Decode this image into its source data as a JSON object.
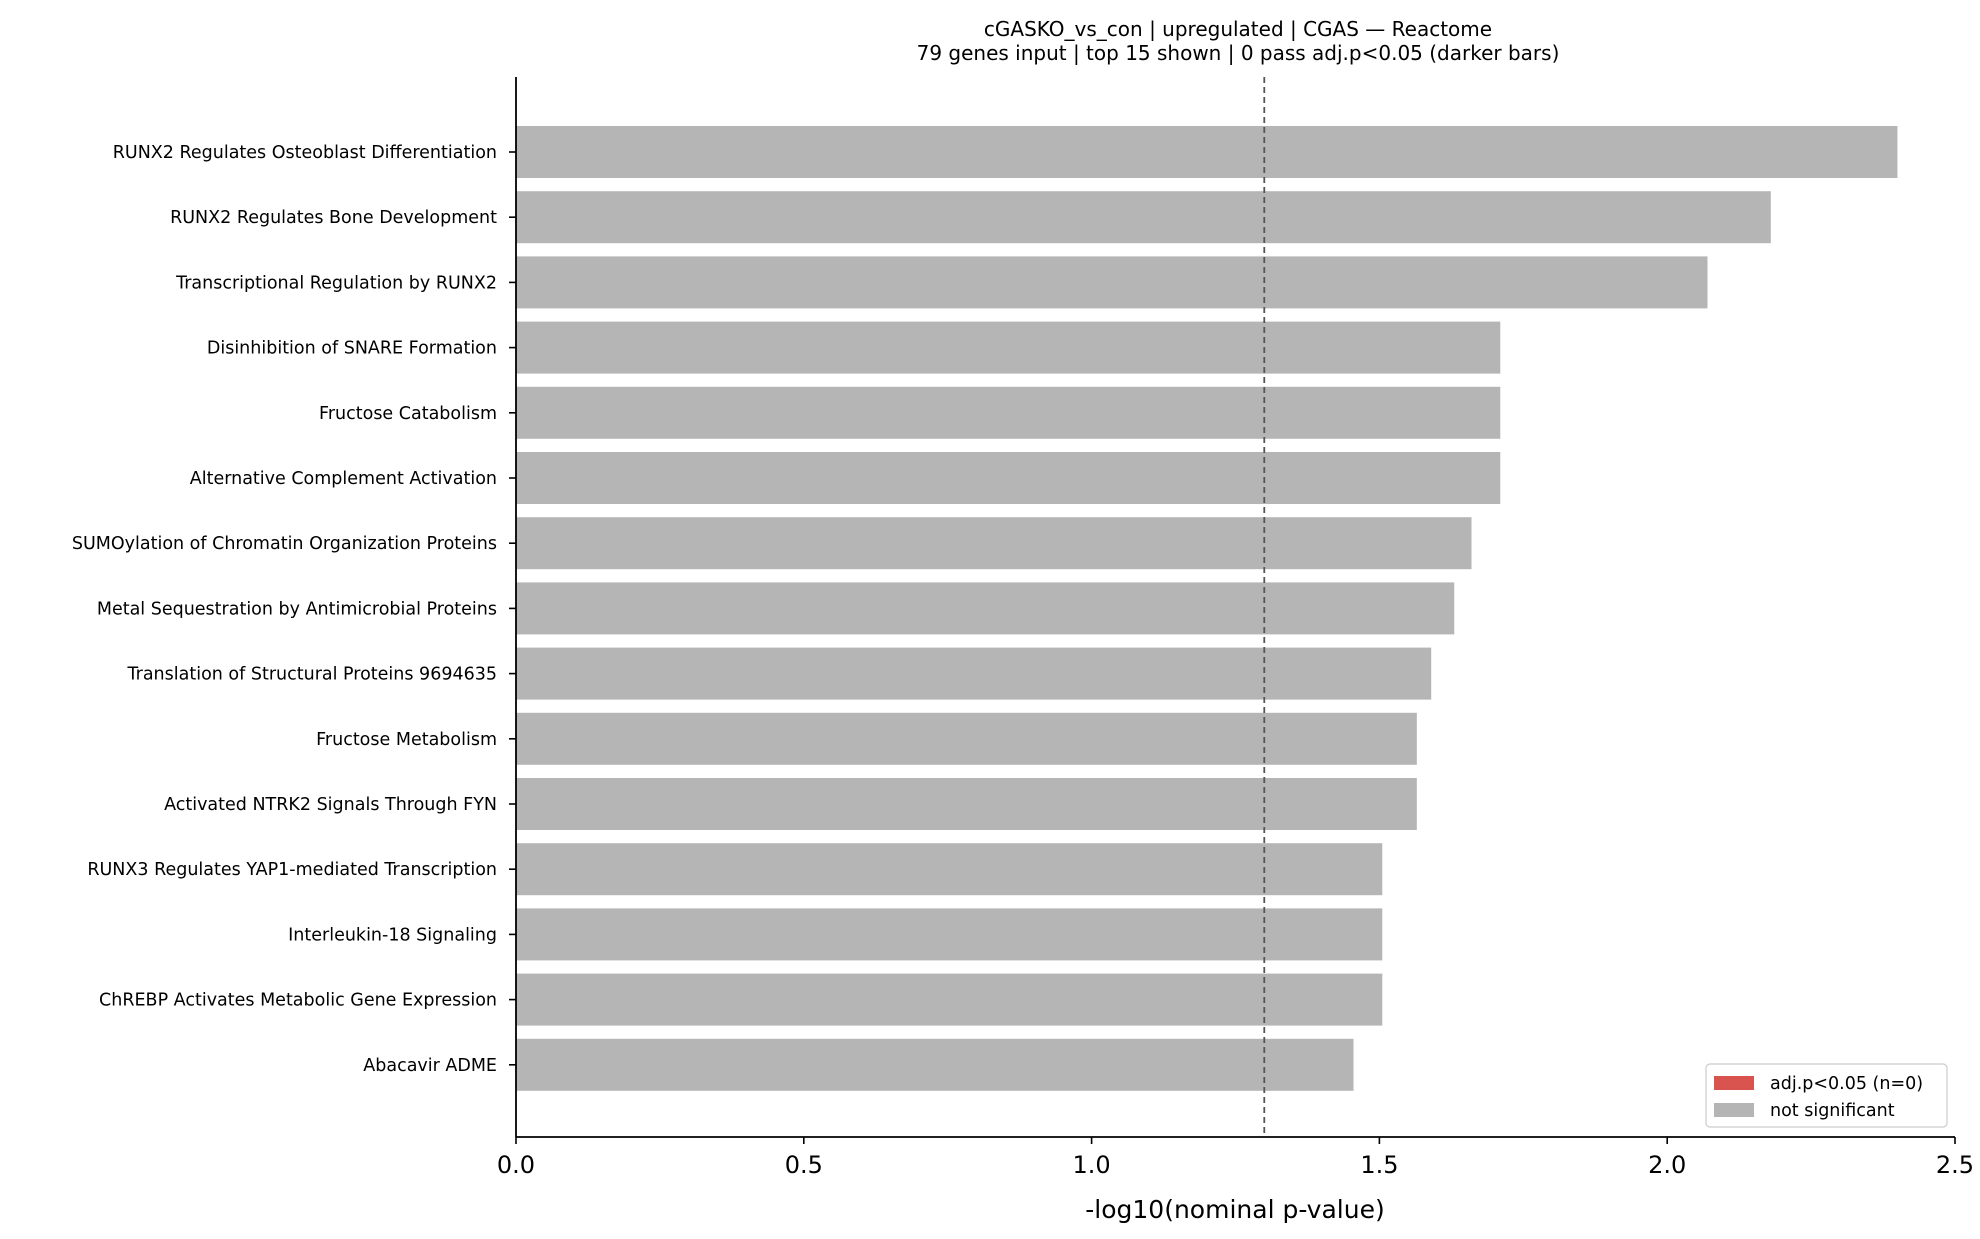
{
  "chart_data": {
    "type": "bar",
    "orientation": "horizontal",
    "title": "cGASKO_vs_con | upregulated | CGAS — Reactome",
    "subtitle": "79 genes input  |  top 15 shown  |  0 pass adj.p<0.05 (darker bars)",
    "xlabel": "-log10(nominal p-value)",
    "ylabel": "",
    "xlim": [
      0,
      2.5
    ],
    "xticks": [
      0.0,
      0.5,
      1.0,
      1.5,
      2.0,
      2.5
    ],
    "xtick_labels": [
      "0.0",
      "0.5",
      "1.0",
      "1.5",
      "2.0",
      "2.5"
    ],
    "threshold": 1.3,
    "categories": [
      "RUNX2 Regulates Osteoblast Differentiation",
      "RUNX2 Regulates Bone Development",
      "Transcriptional Regulation by RUNX2",
      "Disinhibition of SNARE Formation",
      "Fructose Catabolism",
      "Alternative Complement Activation",
      "SUMOylation of Chromatin Organization Proteins",
      "Metal Sequestration by Antimicrobial Proteins",
      "Translation of Structural Proteins 9694635",
      "Fructose Metabolism",
      "Activated NTRK2 Signals Through FYN",
      "RUNX3 Regulates YAP1-mediated Transcription",
      "Interleukin-18 Signaling",
      "ChREBP Activates Metabolic Gene Expression",
      "Abacavir ADME"
    ],
    "values": [
      2.4,
      2.18,
      2.07,
      1.71,
      1.71,
      1.71,
      1.66,
      1.63,
      1.59,
      1.565,
      1.565,
      1.505,
      1.505,
      1.505,
      1.455
    ],
    "significant": [
      false,
      false,
      false,
      false,
      false,
      false,
      false,
      false,
      false,
      false,
      false,
      false,
      false,
      false,
      false
    ],
    "legend": {
      "position": "lower-right",
      "entries": [
        {
          "label": "adj.p<0.05 (n=0)",
          "color": "#d9534f"
        },
        {
          "label": "not significant",
          "color": "#b5b5b5"
        }
      ]
    },
    "colors": {
      "significant": "#d9534f",
      "not_significant": "#b5b5b5",
      "threshold_line": "#555555"
    },
    "grid": false
  }
}
